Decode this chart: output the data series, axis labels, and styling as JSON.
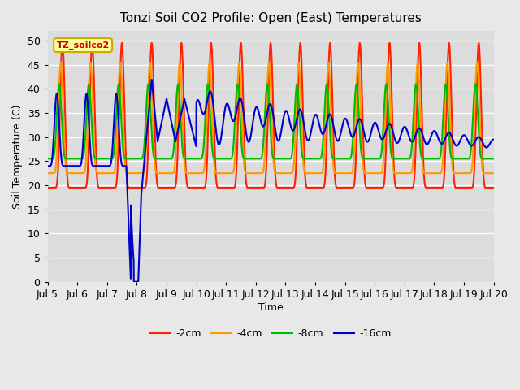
{
  "title": "Tonzi Soil CO2 Profile: Open (East) Temperatures",
  "xlabel": "Time",
  "ylabel": "Soil Temperature (C)",
  "ylim": [
    0,
    52
  ],
  "xlim": [
    0,
    15
  ],
  "legend_label": "TZ_soilco2",
  "fig_bg_color": "#e8e8e8",
  "plot_bg_color": "#dcdcdc",
  "series_colors": [
    "#ff2200",
    "#ff9900",
    "#00bb00",
    "#0000cc"
  ],
  "series_labels": [
    "-2cm",
    "-4cm",
    "-8cm",
    "-16cm"
  ],
  "x_tick_labels": [
    "Jul 5",
    "Jul 6",
    "Jul 7",
    "Jul 8",
    "Jul 9",
    "Jul 10",
    "Jul 11",
    "Jul 12",
    "Jul 13",
    "Jul 14",
    "Jul 15",
    "Jul 16",
    "Jul 17",
    "Jul 18",
    "Jul 19",
    "Jul 20"
  ],
  "x_tick_positions": [
    0,
    1,
    2,
    3,
    4,
    5,
    6,
    7,
    8,
    9,
    10,
    11,
    12,
    13,
    14,
    15
  ],
  "linewidth": 1.5
}
